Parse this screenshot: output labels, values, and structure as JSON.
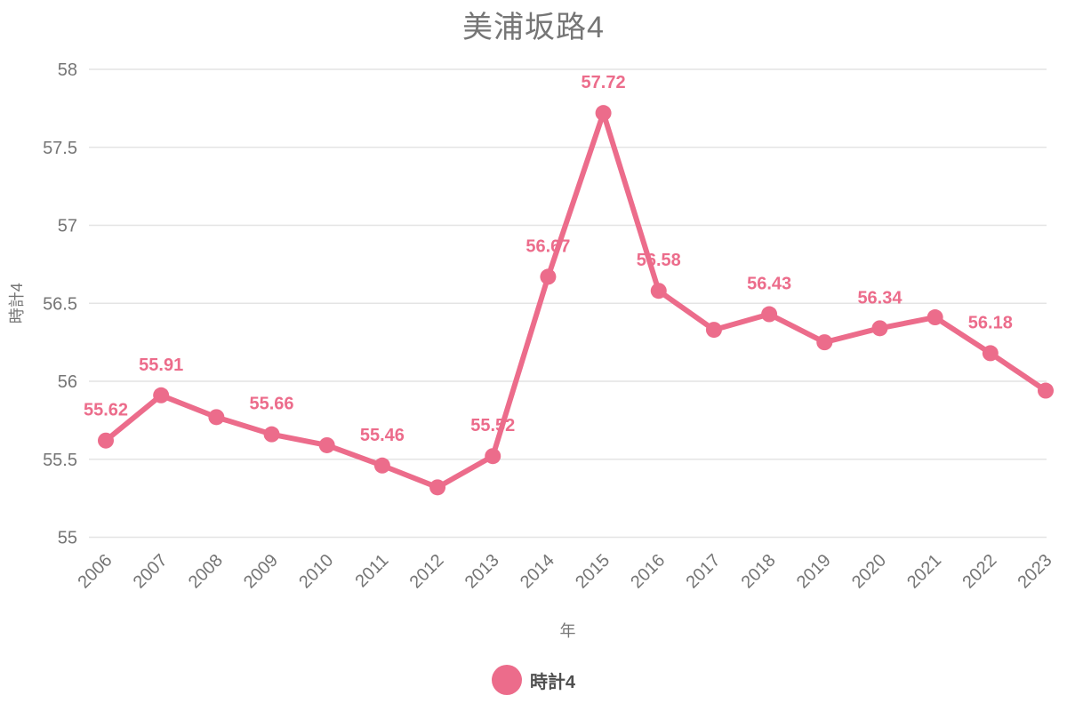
{
  "title": "美浦坂路4",
  "colors": {
    "series": "#ec6c8b",
    "grid": "#e4e4e4",
    "axis_text": "#757575",
    "title_text": "#757575",
    "legend_text": "#4f4f4f",
    "background": "#ffffff"
  },
  "chart_data": {
    "type": "line",
    "title": "美浦坂路4",
    "xlabel": "年",
    "ylabel": "時計4",
    "categories": [
      "2006",
      "2007",
      "2008",
      "2009",
      "2010",
      "2011",
      "2012",
      "2013",
      "2014",
      "2015",
      "2016",
      "2017",
      "2018",
      "2019",
      "2020",
      "2021",
      "2022",
      "2023"
    ],
    "series": [
      {
        "name": "時計4",
        "values": [
          55.62,
          55.91,
          55.77,
          55.66,
          55.59,
          55.46,
          55.32,
          55.52,
          56.67,
          57.72,
          56.58,
          56.33,
          56.43,
          56.25,
          56.34,
          56.41,
          56.18,
          55.94
        ],
        "point_labels": [
          "55.62",
          "55.91",
          null,
          "55.66",
          null,
          "55.46",
          null,
          "55.52",
          "56.67",
          "57.72",
          "56.58",
          null,
          "56.43",
          null,
          "56.34",
          null,
          "56.18",
          null
        ]
      }
    ],
    "ylim": [
      55,
      58
    ],
    "yticks": [
      58,
      57.5,
      57,
      56.5,
      56,
      55.5,
      55
    ],
    "grid": true,
    "legend_position": "bottom"
  }
}
